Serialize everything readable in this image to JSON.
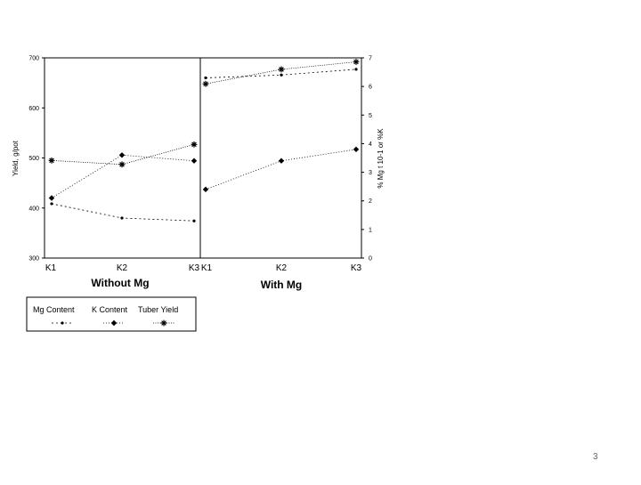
{
  "chart_data": {
    "type": "line",
    "panels": [
      {
        "title": "Without Mg",
        "categories": [
          "K1",
          "K2",
          "K3"
        ]
      },
      {
        "title": "With Mg",
        "categories": [
          "K1",
          "K2",
          "K3"
        ]
      }
    ],
    "left_axis": {
      "label": "Yield, g/pot",
      "range": [
        300,
        700
      ],
      "ticks": [
        "300",
        "400",
        "500",
        "600",
        "700"
      ]
    },
    "right_axis": {
      "label": "% Mg t 10-1 or %K",
      "range": [
        0,
        7
      ],
      "ticks": [
        "0",
        "1",
        "2",
        "3",
        "4",
        "5",
        "6",
        "7"
      ]
    },
    "series": [
      {
        "name": "Mg Content",
        "axis": "right",
        "marker": "dot",
        "values": [
          [
            1.9,
            1.4,
            1.3
          ],
          [
            6.3,
            6.4,
            6.6
          ]
        ]
      },
      {
        "name": "K Content",
        "axis": "right",
        "marker": "diamond",
        "values": [
          [
            2.1,
            3.6,
            3.4
          ],
          [
            2.4,
            3.4,
            3.8
          ]
        ]
      },
      {
        "name": "Tuber Yield",
        "axis": "left",
        "marker": "asterisk",
        "values": [
          [
            495,
            487,
            527
          ],
          [
            648,
            677,
            692
          ]
        ]
      }
    ],
    "legend_position": "bottom-left",
    "grid": false
  },
  "footer": {
    "slide_number": "3"
  }
}
